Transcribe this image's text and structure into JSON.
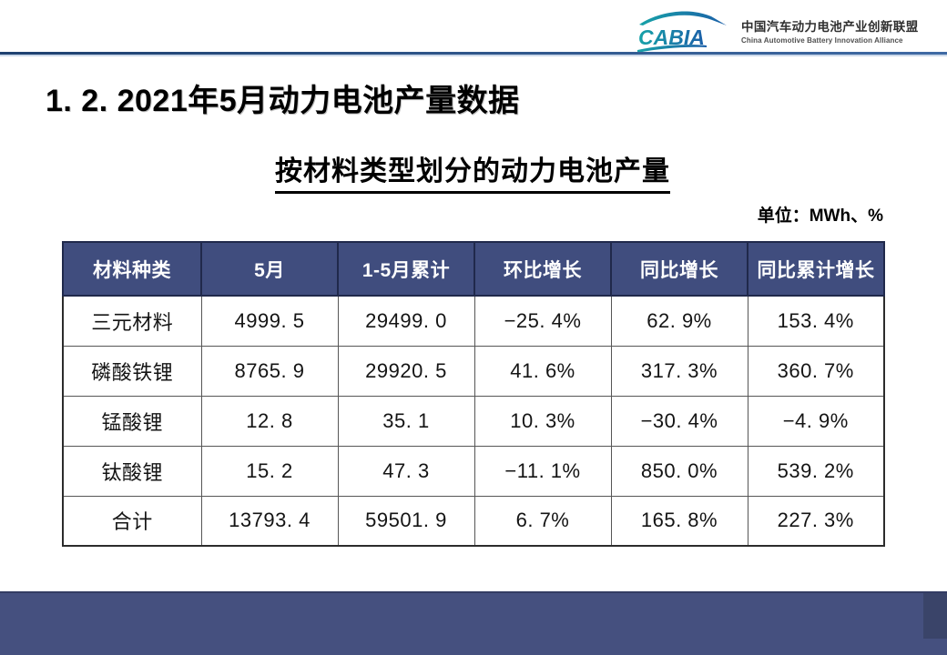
{
  "page": {
    "title": "1. 2.  2021年5月动力电池产量数据",
    "subtitle": "按材料类型划分的动力电池产量",
    "unit_label": "单位：MWh、%"
  },
  "logo": {
    "brand": "CABIA",
    "org_cn": "中国汽车动力电池产业创新联盟",
    "org_en": "China Automotive Battery Innovation Alliance"
  },
  "table": {
    "headers": [
      "材料种类",
      "5月",
      "1-5月累计",
      "环比增长",
      "同比增长",
      "同比累计增长"
    ],
    "rows": [
      [
        "三元材料",
        "4999. 5",
        "29499. 0",
        "−25. 4%",
        "62. 9%",
        "153. 4%"
      ],
      [
        "磷酸铁锂",
        "8765. 9",
        "29920. 5",
        "41. 6%",
        "317. 3%",
        "360. 7%"
      ],
      [
        "锰酸锂",
        "12. 8",
        "35. 1",
        "10. 3%",
        "−30. 4%",
        "−4. 9%"
      ],
      [
        "钛酸锂",
        "15. 2",
        "47. 3",
        "−11. 1%",
        "850. 0%",
        "539. 2%"
      ],
      [
        "合计",
        "13793. 4",
        "59501. 9",
        "6. 7%",
        "165. 8%",
        "227. 3%"
      ]
    ]
  },
  "chart_data": {
    "type": "table",
    "title": "按材料类型划分的动力电池产量",
    "unit": "MWh、%",
    "columns": [
      "材料种类",
      "5月",
      "1-5月累计",
      "环比增长",
      "同比增长",
      "同比累计增长"
    ],
    "records": [
      {
        "材料种类": "三元材料",
        "5月": 4999.5,
        "1-5月累计": 29499.0,
        "环比增长_pct": -25.4,
        "同比增长_pct": 62.9,
        "同比累计增长_pct": 153.4
      },
      {
        "材料种类": "磷酸铁锂",
        "5月": 8765.9,
        "1-5月累计": 29920.5,
        "环比增长_pct": 41.6,
        "同比增长_pct": 317.3,
        "同比累计增长_pct": 360.7
      },
      {
        "材料种类": "锰酸锂",
        "5月": 12.8,
        "1-5月累计": 35.1,
        "环比增长_pct": 10.3,
        "同比增长_pct": -30.4,
        "同比累计增长_pct": -4.9
      },
      {
        "材料种类": "钛酸锂",
        "5月": 15.2,
        "1-5月累计": 47.3,
        "环比增长_pct": -11.1,
        "同比增长_pct": 850.0,
        "同比累计增长_pct": 539.2
      },
      {
        "材料种类": "合计",
        "5月": 13793.4,
        "1-5月累计": 59501.9,
        "环比增长_pct": 6.7,
        "同比增长_pct": 165.8,
        "同比累计增长_pct": 227.3
      }
    ]
  },
  "colors": {
    "table_header_bg": "#404D7E",
    "footer_bar": "#45507F",
    "divider_start": "#1E4170",
    "divider_end": "#3F6AA4",
    "logo_teal": "#17A2A8",
    "logo_blue": "#1B5FA8"
  }
}
